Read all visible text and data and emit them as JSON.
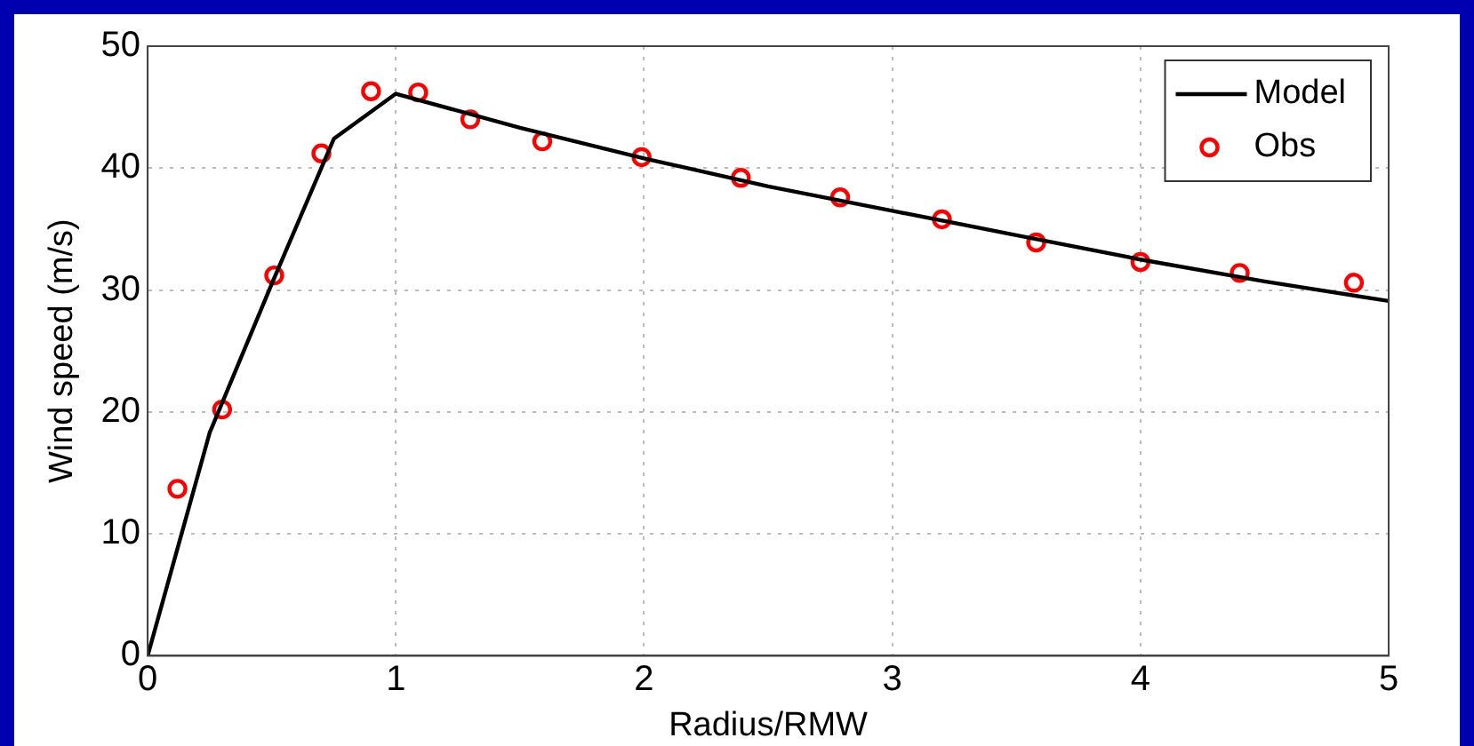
{
  "chart_data": {
    "type": "line",
    "xlabel": "Radius/RMW",
    "ylabel": "Wind speed (m/s)",
    "xlim": [
      0,
      5
    ],
    "xticks": [
      0,
      1,
      2,
      3,
      4,
      5
    ],
    "ylim": [
      0,
      50
    ],
    "yticks": [
      0,
      10,
      20,
      30,
      40,
      50
    ],
    "grid": true,
    "legend": "top right",
    "series": [
      {
        "name": "Model",
        "color": "#000000",
        "marker": "none",
        "line_style": "solid",
        "x": [
          0,
          0.25,
          0.5,
          0.75,
          1,
          1.5,
          2,
          2.5,
          3,
          3.5,
          4,
          4.5,
          5
        ],
        "values": [
          0,
          18.3,
          30.5,
          42.4,
          46.1,
          43.3,
          40.8,
          38.5,
          36.5,
          34.5,
          32.5,
          30.7,
          29.1
        ]
      },
      {
        "name": "Obs",
        "type": "scatter",
        "color": "#ff0000",
        "marker": "circle",
        "x": [
          0.12,
          0.3,
          0.51,
          0.7,
          0.9,
          1.09,
          1.3,
          1.59,
          1.99,
          2.39,
          2.79,
          3.2,
          3.58,
          4.0,
          4.4,
          4.86
        ],
        "values": [
          13.7,
          20.2,
          31.2,
          41.2,
          46.3,
          46.2,
          44.0,
          42.2,
          40.9,
          39.2,
          37.6,
          35.8,
          33.9,
          32.3,
          31.4,
          30.6
        ]
      }
    ]
  }
}
